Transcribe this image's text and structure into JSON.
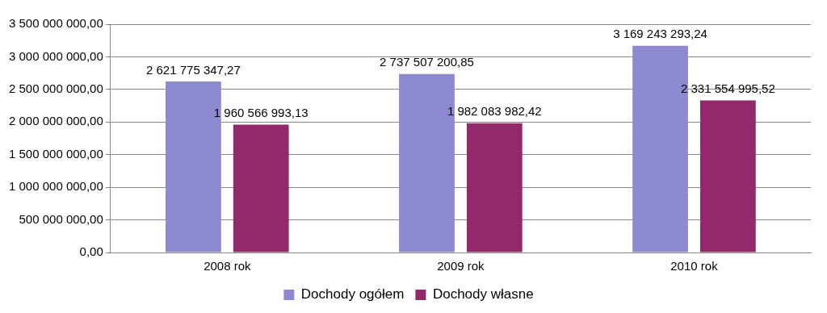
{
  "chart_data": {
    "type": "bar",
    "categories": [
      "2008 rok",
      "2009 rok",
      "2010 rok"
    ],
    "series": [
      {
        "name": "Dochody ogółem",
        "color": "#8c89d0",
        "values": [
          2621775347.27,
          2737507200.85,
          3169243293.24
        ],
        "value_labels": [
          "2 621 775 347,27",
          "2 737 507 200,85",
          "3 169 243 293,24"
        ]
      },
      {
        "name": "Dochody własne",
        "color": "#93296a",
        "values": [
          1960566993.13,
          1982083982.42,
          2331554995.52
        ],
        "value_labels": [
          "1 960 566 993,13",
          "1 982 083 982,42",
          "2 331 554 995,52"
        ]
      }
    ],
    "ylim": [
      0,
      3500000000
    ],
    "yticks": [
      {
        "value": 0,
        "label": "0,00"
      },
      {
        "value": 500000000,
        "label": "500 000 000,00"
      },
      {
        "value": 1000000000,
        "label": "1 000 000 000,00"
      },
      {
        "value": 1500000000,
        "label": "1 500 000 000,00"
      },
      {
        "value": 2000000000,
        "label": "2 000 000 000,00"
      },
      {
        "value": 2500000000,
        "label": "2 500 000 000,00"
      },
      {
        "value": 3000000000,
        "label": "3 000 000 000,00"
      },
      {
        "value": 3500000000,
        "label": "3 500 000 000,00"
      }
    ],
    "grid": "y",
    "legend": "bottom"
  }
}
